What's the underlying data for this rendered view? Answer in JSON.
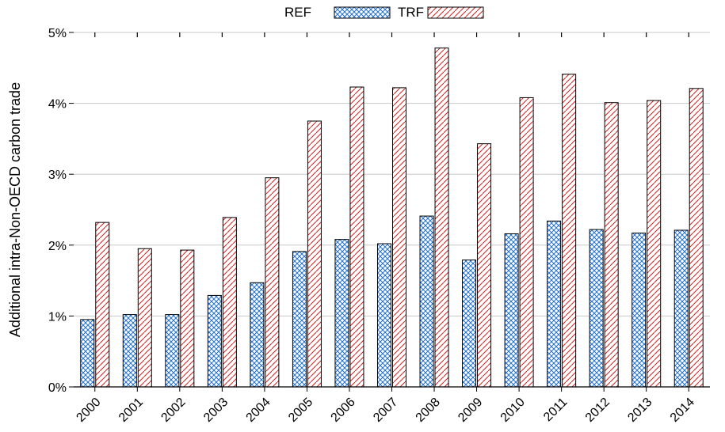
{
  "chart_data": {
    "type": "bar",
    "title": "",
    "xlabel": "",
    "ylabel": "Additional intra-Non-OECD carbon trade",
    "categories": [
      "2000",
      "2001",
      "2002",
      "2003",
      "2004",
      "2005",
      "2006",
      "2007",
      "2008",
      "2009",
      "2010",
      "2011",
      "2012",
      "2013",
      "2014"
    ],
    "series": [
      {
        "name": "REF",
        "pattern": "crosshatch",
        "color": "#1f6fd0",
        "values": [
          0.95,
          1.02,
          1.02,
          1.29,
          1.47,
          1.91,
          2.08,
          2.02,
          2.41,
          1.79,
          2.16,
          2.34,
          2.22,
          2.17,
          2.21
        ]
      },
      {
        "name": "TRF",
        "pattern": "diagonal",
        "color": "#cc1f1f",
        "values": [
          2.32,
          1.95,
          1.93,
          2.39,
          2.95,
          3.75,
          4.23,
          4.22,
          4.78,
          3.43,
          4.08,
          4.41,
          4.01,
          4.04,
          4.21
        ]
      }
    ],
    "ylim": [
      0,
      5
    ],
    "yticks": [
      0,
      1,
      2,
      3,
      4,
      5
    ],
    "ytick_labels": [
      "0%",
      "1%",
      "2%",
      "3%",
      "4%",
      "5%"
    ],
    "grid": "horizontal",
    "legend_position": "top-center"
  }
}
